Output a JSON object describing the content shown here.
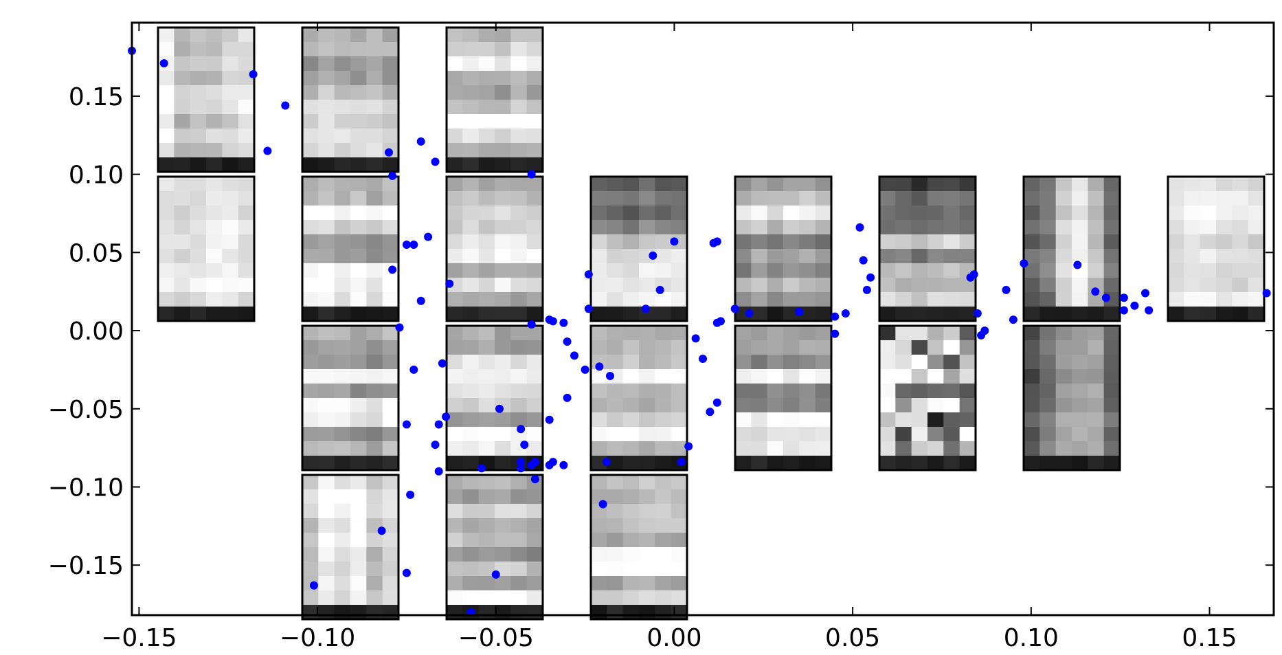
{
  "chart_data": {
    "type": "scatter",
    "title": "",
    "xlabel": "",
    "ylabel": "",
    "xlim": [
      -0.152,
      0.168
    ],
    "ylim": [
      -0.182,
      0.197
    ],
    "xticks": [
      -0.15,
      -0.1,
      -0.05,
      0.0,
      0.05,
      0.1,
      0.15
    ],
    "xtick_labels": [
      "−0.15",
      "−0.10",
      "−0.05",
      "0.00",
      "0.05",
      "0.10",
      "0.15"
    ],
    "yticks": [
      0.15,
      0.1,
      0.05,
      0.0,
      -0.05,
      -0.1,
      -0.15
    ],
    "ytick_labels": [
      "0.15",
      "0.10",
      "0.05",
      "0.00",
      "−0.05",
      "−0.10",
      "−0.15"
    ],
    "grid": false,
    "legend": "none",
    "colors": {
      "points": "#0000ff",
      "axes": "#000000",
      "background": "#ffffff"
    },
    "series": [
      {
        "x": [
          -0.152,
          -0.143,
          -0.118,
          -0.109,
          -0.114,
          -0.08,
          -0.071,
          -0.067,
          -0.079,
          -0.073,
          -0.075,
          -0.069,
          -0.079,
          -0.063,
          -0.071,
          -0.077,
          -0.065,
          -0.073,
          -0.064,
          -0.066,
          -0.067,
          -0.075,
          -0.066,
          -0.074,
          -0.082,
          -0.075,
          -0.101,
          -0.057,
          -0.05,
          -0.054,
          -0.043,
          -0.04,
          -0.031,
          -0.024,
          -0.024,
          -0.03,
          -0.028,
          -0.025,
          -0.021,
          -0.018,
          -0.03,
          -0.035,
          -0.043,
          -0.042,
          -0.039,
          -0.039,
          -0.043,
          -0.049,
          -0.04,
          -0.04,
          -0.035,
          -0.034,
          -0.035,
          -0.034,
          -0.031,
          -0.019,
          -0.02,
          -0.006,
          -0.004,
          -0.008,
          0.0,
          0.006,
          0.008,
          0.01,
          0.004,
          0.002,
          0.017,
          0.021,
          0.013,
          0.012,
          0.012,
          0.011,
          0.012,
          0.035,
          0.045,
          0.048,
          0.045,
          0.052,
          0.053,
          0.054,
          0.055,
          0.083,
          0.084,
          0.086,
          0.087,
          0.093,
          0.095,
          0.085,
          0.098,
          0.113,
          0.118,
          0.121,
          0.126,
          0.129,
          0.132,
          0.126,
          0.133,
          0.166,
          0.169
        ],
        "y": [
          0.179,
          0.171,
          0.164,
          0.144,
          0.115,
          0.114,
          0.121,
          0.108,
          0.099,
          0.055,
          0.055,
          0.06,
          0.039,
          0.03,
          0.019,
          0.002,
          -0.021,
          -0.025,
          -0.055,
          -0.06,
          -0.073,
          -0.06,
          -0.09,
          -0.105,
          -0.128,
          -0.155,
          -0.163,
          -0.18,
          -0.156,
          -0.088,
          -0.084,
          0.004,
          0.005,
          0.014,
          0.036,
          -0.007,
          -0.016,
          -0.025,
          -0.023,
          -0.029,
          -0.043,
          -0.057,
          -0.063,
          -0.073,
          -0.084,
          -0.095,
          -0.088,
          -0.05,
          0.1,
          -0.086,
          -0.086,
          0.006,
          0.007,
          -0.084,
          -0.086,
          -0.084,
          -0.111,
          0.048,
          0.026,
          0.014,
          0.057,
          -0.005,
          -0.018,
          -0.052,
          -0.074,
          -0.084,
          0.014,
          0.011,
          0.006,
          -0.046,
          0.057,
          0.056,
          0.005,
          0.012,
          -0.002,
          0.011,
          0.009,
          0.066,
          0.045,
          0.026,
          0.034,
          0.034,
          0.036,
          -0.003,
          0.0,
          0.026,
          0.007,
          0.011,
          0.043,
          0.042,
          0.025,
          0.021,
          0.013,
          0.016,
          0.024,
          0.021,
          0.013,
          0.024,
          0.022
        ]
      }
    ],
    "inset_images": {
      "description_free": true,
      "colormap": "gray",
      "grid_rows": 8,
      "grid_cols": 6,
      "tiles": [
        {
          "row": 0,
          "col": 0,
          "seed": 11,
          "pattern": "cross",
          "base": 0.86
        },
        {
          "row": 0,
          "col": 1,
          "seed": 12,
          "pattern": "bands",
          "base": 0.82
        },
        {
          "row": 0,
          "col": 2,
          "seed": 13,
          "pattern": "bands",
          "base": 0.85
        },
        {
          "row": 1,
          "col": 0,
          "seed": 21,
          "pattern": "flat",
          "base": 0.93
        },
        {
          "row": 1,
          "col": 1,
          "seed": 22,
          "pattern": "bands",
          "base": 0.82
        },
        {
          "row": 1,
          "col": 2,
          "seed": 23,
          "pattern": "bands",
          "base": 0.82
        },
        {
          "row": 1,
          "col": 3,
          "seed": 24,
          "pattern": "topdark",
          "base": 0.85
        },
        {
          "row": 1,
          "col": 4,
          "seed": 25,
          "pattern": "bands",
          "base": 0.72
        },
        {
          "row": 1,
          "col": 5,
          "seed": 26,
          "pattern": "topdark",
          "base": 0.72
        },
        {
          "row": 1,
          "col": 6,
          "seed": 27,
          "pattern": "columns",
          "base": 0.6
        },
        {
          "row": 1,
          "col": 7,
          "seed": 28,
          "pattern": "soft",
          "base": 0.88
        },
        {
          "row": 2,
          "col": 1,
          "seed": 31,
          "pattern": "bands",
          "base": 0.8
        },
        {
          "row": 2,
          "col": 2,
          "seed": 32,
          "pattern": "bands",
          "base": 0.78
        },
        {
          "row": 2,
          "col": 3,
          "seed": 33,
          "pattern": "bands",
          "base": 0.8
        },
        {
          "row": 2,
          "col": 4,
          "seed": 34,
          "pattern": "bands",
          "base": 0.75
        },
        {
          "row": 2,
          "col": 5,
          "seed": 35,
          "pattern": "noisy",
          "base": 0.6
        },
        {
          "row": 2,
          "col": 6,
          "seed": 36,
          "pattern": "columns",
          "base": 0.5
        },
        {
          "row": 3,
          "col": 1,
          "seed": 41,
          "pattern": "cross",
          "base": 0.82
        },
        {
          "row": 3,
          "col": 2,
          "seed": 42,
          "pattern": "bands",
          "base": 0.8
        },
        {
          "row": 3,
          "col": 3,
          "seed": 43,
          "pattern": "bands",
          "base": 0.88
        }
      ]
    }
  }
}
